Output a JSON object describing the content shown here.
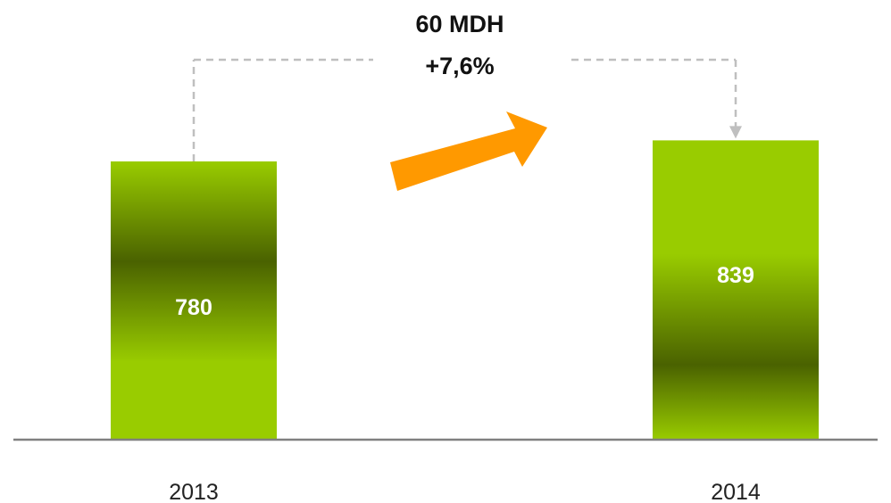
{
  "chart_data": {
    "type": "bar",
    "categories": [
      "2013",
      "2014"
    ],
    "values": [
      780,
      839
    ],
    "title": "",
    "xlabel": "",
    "ylabel": "",
    "grid": false,
    "legend": "none",
    "data_labels": [
      "780",
      "839"
    ],
    "annotation": {
      "difference_label": "60 MDH",
      "growth_label": "+7,6%",
      "arrow_direction": "up-right"
    }
  },
  "colors": {
    "bar_light": "#99cc00",
    "bar_dark": "#4a6200",
    "arrow": "#ff9900",
    "connector": "#bfbfbf",
    "axis": "#808080"
  }
}
